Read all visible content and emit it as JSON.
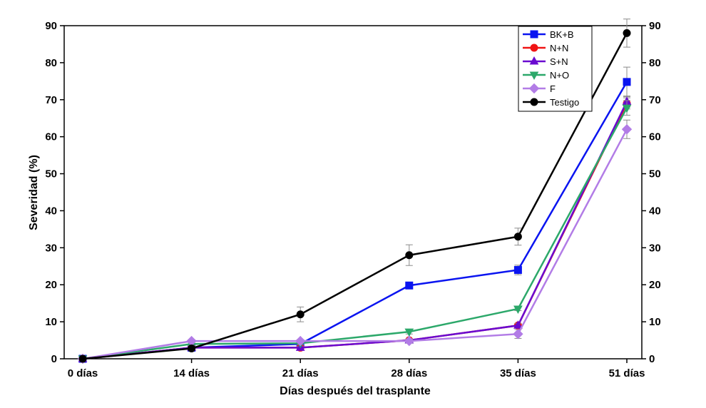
{
  "chart_data": {
    "type": "line",
    "xlabel": "Días después del trasplante",
    "ylabel": "Severidad (%)",
    "ylim": [
      0,
      90
    ],
    "yticks": [
      0,
      10,
      20,
      30,
      40,
      50,
      60,
      70,
      80,
      90
    ],
    "categories": [
      "0 días",
      "14 días",
      "21 días",
      "28 días",
      "35 días",
      "51 días"
    ],
    "legend_position": "top-right",
    "grid": false,
    "series": [
      {
        "name": "BK+B",
        "color": "#0a14f0",
        "marker": "square",
        "values": [
          0,
          3,
          4,
          19.8,
          24,
          74.8
        ],
        "errors": [
          0.5,
          0.5,
          0.5,
          0.8,
          1.3,
          4
        ]
      },
      {
        "name": "N+N",
        "color": "#f01414",
        "marker": "circle",
        "values": [
          0,
          3,
          3,
          5,
          9,
          69
        ],
        "errors": [
          0.3,
          0.3,
          0.3,
          0.4,
          0.5,
          1.5
        ]
      },
      {
        "name": "S+N",
        "color": "#6a0ad0",
        "marker": "triangle-up",
        "values": [
          0,
          3,
          3,
          5,
          9,
          69.5
        ],
        "errors": [
          0.3,
          0.3,
          0.3,
          0.4,
          0.6,
          1.5
        ]
      },
      {
        "name": "N+O",
        "color": "#2ca86a",
        "marker": "triangle-down",
        "values": [
          0,
          4,
          4.2,
          7.3,
          13.5,
          67.8
        ],
        "errors": [
          0.3,
          0.4,
          0.4,
          0.6,
          0.5,
          2
        ]
      },
      {
        "name": "F",
        "color": "#b27ce6",
        "marker": "diamond",
        "values": [
          0,
          4.8,
          4.8,
          4.8,
          6.7,
          62
        ],
        "errors": [
          0.3,
          0.4,
          0.4,
          0.6,
          1.2,
          2.5
        ]
      },
      {
        "name": "Testigo",
        "color": "#000000",
        "marker": "circle",
        "values": [
          0,
          2.8,
          12,
          28,
          33,
          88
        ],
        "errors": [
          0.5,
          0.5,
          2,
          2.8,
          2.3,
          3.8
        ]
      }
    ]
  }
}
